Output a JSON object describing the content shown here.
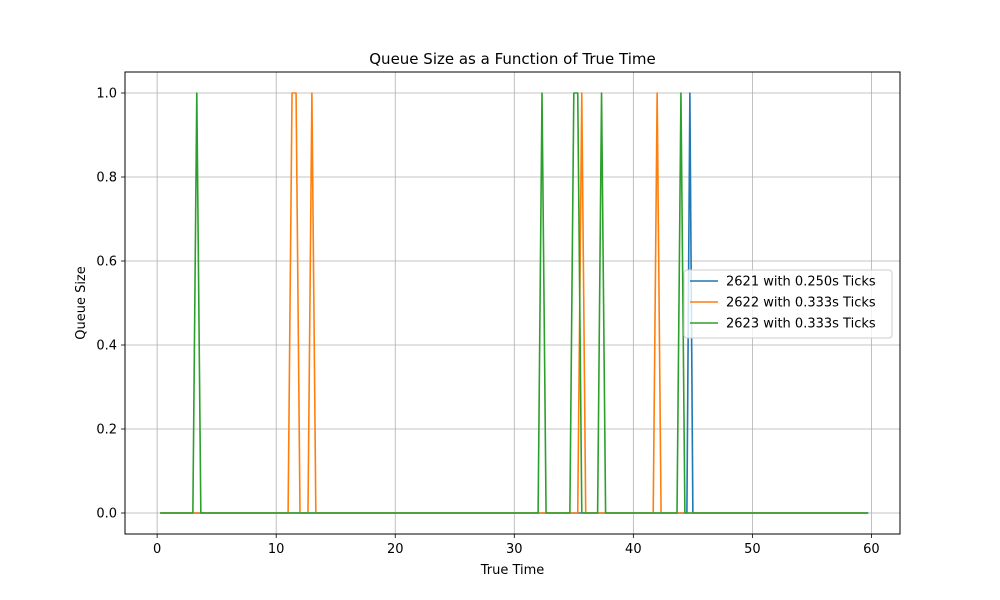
{
  "chart_data": {
    "type": "line",
    "title": "Queue Size as a Function of True Time",
    "xlabel": "True Time",
    "ylabel": "Queue Size",
    "xlim": [
      -2.7,
      62.4
    ],
    "ylim": [
      -0.05,
      1.05
    ],
    "xticks": [
      0,
      10,
      20,
      30,
      40,
      50,
      60
    ],
    "yticks": [
      0.0,
      0.2,
      0.4,
      0.6,
      0.8,
      1.0
    ],
    "xtick_labels": [
      "0",
      "10",
      "20",
      "30",
      "40",
      "50",
      "60"
    ],
    "ytick_labels": [
      "0.0",
      "0.2",
      "0.4",
      "0.6",
      "0.8",
      "1.0"
    ],
    "grid": true,
    "legend_position": "center-right",
    "series": [
      {
        "name": "2621 with 0.250s Ticks",
        "color": "#1f77b4",
        "x": [
          0.25,
          44.25,
          44.5,
          44.75,
          45.0,
          59.75
        ],
        "y": [
          0,
          0,
          0,
          1,
          0,
          0
        ]
      },
      {
        "name": "2622 with 0.333s Ticks",
        "color": "#ff7f0e",
        "x": [
          0.25,
          11.0,
          11.33,
          11.67,
          12.0,
          12.67,
          13.0,
          13.33,
          35.0,
          35.33,
          35.67,
          36.0,
          41.67,
          42.0,
          42.33,
          44.33,
          59.67
        ],
        "y": [
          0,
          0,
          1,
          1,
          0,
          0,
          1,
          0,
          0,
          0,
          1,
          0,
          0,
          1,
          0,
          0,
          0
        ]
      },
      {
        "name": "2623 with 0.333s Ticks",
        "color": "#2ca02c",
        "x": [
          0.25,
          3.0,
          3.33,
          3.67,
          32.0,
          32.33,
          32.67,
          34.67,
          35.0,
          35.33,
          35.67,
          37.0,
          37.33,
          37.67,
          43.67,
          44.0,
          44.33,
          59.67
        ],
        "y": [
          0,
          0,
          1,
          0,
          0,
          1,
          0,
          0,
          1,
          1,
          0,
          0,
          1,
          0,
          0,
          1,
          0,
          0
        ]
      }
    ]
  }
}
